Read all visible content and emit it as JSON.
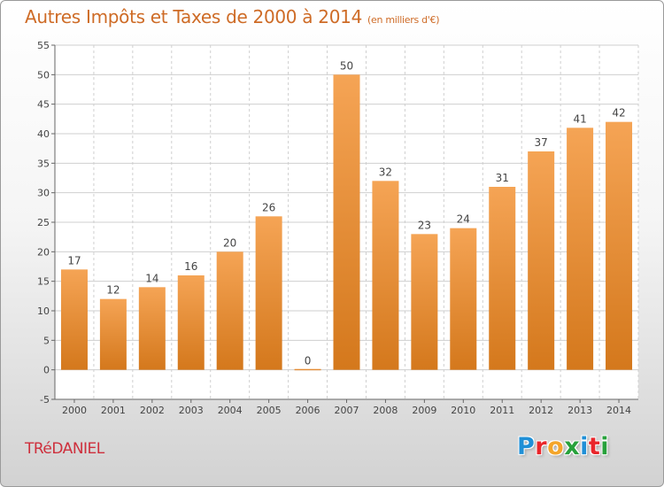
{
  "header": {
    "title": "Autres Impôts et Taxes de 2000 à 2014",
    "subtitle": "(en milliers d'€)"
  },
  "footer": {
    "commune": "TRéDANIEL",
    "logo_text": "Proxiti",
    "logo_colors": [
      "#1f8fd6",
      "#e9262b",
      "#f4a52a",
      "#27a13b",
      "#1f8fd6",
      "#e9262b",
      "#27a13b"
    ]
  },
  "colors": {
    "bar_light": "#f5a455",
    "bar_dark": "#d4781c",
    "title": "#ce6b26",
    "commune": "#ce2f3c"
  },
  "chart_data": {
    "type": "bar",
    "title": "Autres Impôts et Taxes de 2000 à 2014",
    "categories": [
      "2000",
      "2001",
      "2002",
      "2003",
      "2004",
      "2005",
      "2006",
      "2007",
      "2008",
      "2009",
      "2010",
      "2011",
      "2012",
      "2013",
      "2014"
    ],
    "values": [
      17,
      12,
      14,
      16,
      20,
      26,
      0,
      50,
      32,
      23,
      24,
      31,
      37,
      41,
      42
    ],
    "xlabel": "",
    "ylabel": "",
    "ylim": [
      -5,
      55
    ],
    "yticks": [
      -5,
      0,
      5,
      10,
      15,
      20,
      25,
      30,
      35,
      40,
      45,
      50,
      55
    ],
    "grid": true,
    "legend": "none"
  }
}
